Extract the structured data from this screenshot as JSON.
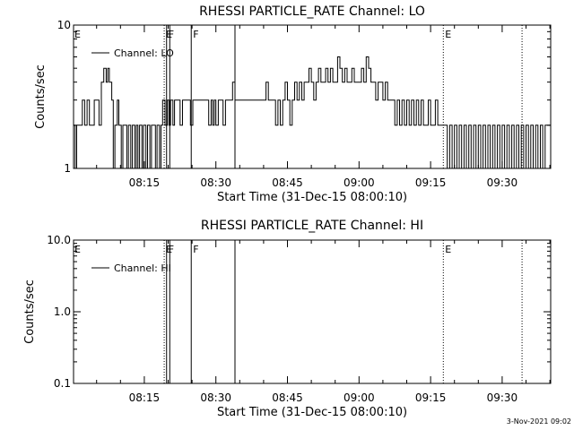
{
  "footer": {
    "timestamp": "3-Nov-2021 09:02"
  },
  "chart_data": [
    {
      "type": "line",
      "title": "RHESSI PARTICLE_RATE Channel: LO",
      "xlabel": "Start Time (31-Dec-15 08:00:10)",
      "ylabel": "Counts/sec",
      "yscale": "log",
      "xlim": [
        "08:00:10",
        "09:40:10"
      ],
      "ylim": [
        1,
        10
      ],
      "x_ticks": [
        "08:15",
        "08:30",
        "08:45",
        "09:00",
        "09:15",
        "09:30"
      ],
      "y_ticks": [
        "1",
        "10"
      ],
      "grid": false,
      "legend": {
        "position": "top-left",
        "entries": [
          "Channel: LO"
        ]
      },
      "markers": [
        {
          "time": "08:19:10",
          "label": "E",
          "style": "dotted"
        },
        {
          "time": "08:19:40",
          "label": "F",
          "style": "solid"
        },
        {
          "time": "08:20:20",
          "label": "",
          "style": "solid"
        },
        {
          "time": "08:24:50",
          "label": "F",
          "style": "solid"
        },
        {
          "time": "08:34:00",
          "label": "",
          "style": "solid"
        },
        {
          "time": "09:17:40",
          "label": "E",
          "style": "dotted"
        },
        {
          "time": "09:34:10",
          "label": "",
          "style": "dotted"
        }
      ],
      "edge_labels": [
        {
          "time": "08:00:10",
          "label": "E"
        }
      ],
      "series": [
        {
          "name": "Channel: LO",
          "points": [
            [
              "08:00:10",
              2
            ],
            [
              "08:00:30",
              1
            ],
            [
              "08:00:50",
              2
            ],
            [
              "08:01:30",
              2
            ],
            [
              "08:02:00",
              3
            ],
            [
              "08:02:30",
              2
            ],
            [
              "08:03:00",
              3
            ],
            [
              "08:03:30",
              2
            ],
            [
              "08:04:00",
              2
            ],
            [
              "08:04:30",
              3
            ],
            [
              "08:05:00",
              3
            ],
            [
              "08:05:30",
              2
            ],
            [
              "08:06:00",
              4
            ],
            [
              "08:06:30",
              5
            ],
            [
              "08:07:00",
              4
            ],
            [
              "08:07:20",
              5
            ],
            [
              "08:07:40",
              4
            ],
            [
              "08:08:10",
              3
            ],
            [
              "08:08:30",
              1
            ],
            [
              "08:08:50",
              2
            ],
            [
              "08:09:20",
              3
            ],
            [
              "08:09:40",
              2
            ],
            [
              "08:10:10",
              1
            ],
            [
              "08:10:30",
              2
            ],
            [
              "08:11:00",
              2
            ],
            [
              "08:11:20",
              1
            ],
            [
              "08:11:40",
              2
            ],
            [
              "08:12:10",
              1
            ],
            [
              "08:12:30",
              2
            ],
            [
              "08:13:00",
              1
            ],
            [
              "08:13:20",
              2
            ],
            [
              "08:13:40",
              1
            ],
            [
              "08:14:00",
              2
            ],
            [
              "08:14:30",
              1
            ],
            [
              "08:14:50",
              2
            ],
            [
              "08:15:20",
              1
            ],
            [
              "08:15:40",
              2
            ],
            [
              "08:16:10",
              1
            ],
            [
              "08:16:30",
              2
            ],
            [
              "08:16:50",
              2
            ],
            [
              "08:17:20",
              1
            ],
            [
              "08:17:40",
              2
            ],
            [
              "08:18:10",
              1
            ],
            [
              "08:18:30",
              2
            ],
            [
              "08:18:50",
              3
            ],
            [
              "08:19:20",
              2
            ],
            [
              "08:19:50",
              3
            ],
            [
              "08:20:10",
              2
            ],
            [
              "08:20:30",
              3
            ],
            [
              "08:21:00",
              2
            ],
            [
              "08:21:20",
              3
            ],
            [
              "08:22:00",
              3
            ],
            [
              "08:22:30",
              2
            ],
            [
              "08:23:00",
              3
            ],
            [
              "08:24:00",
              3
            ],
            [
              "08:24:40",
              2
            ],
            [
              "08:25:10",
              3
            ],
            [
              "08:26:00",
              3
            ],
            [
              "08:27:00",
              3
            ],
            [
              "08:28:00",
              3
            ],
            [
              "08:28:30",
              2
            ],
            [
              "08:29:00",
              3
            ],
            [
              "08:29:20",
              2
            ],
            [
              "08:29:40",
              3
            ],
            [
              "08:30:00",
              2
            ],
            [
              "08:30:30",
              3
            ],
            [
              "08:31:00",
              3
            ],
            [
              "08:31:30",
              2
            ],
            [
              "08:32:00",
              3
            ],
            [
              "08:33:00",
              3
            ],
            [
              "08:33:30",
              4
            ],
            [
              "08:34:00",
              3
            ],
            [
              "08:35:00",
              3
            ],
            [
              "08:36:00",
              3
            ],
            [
              "08:37:00",
              3
            ],
            [
              "08:38:00",
              3
            ],
            [
              "08:39:00",
              3
            ],
            [
              "08:40:00",
              3
            ],
            [
              "08:40:30",
              4
            ],
            [
              "08:41:00",
              3
            ],
            [
              "08:42:00",
              3
            ],
            [
              "08:42:30",
              2
            ],
            [
              "08:43:00",
              3
            ],
            [
              "08:43:30",
              2
            ],
            [
              "08:44:00",
              3
            ],
            [
              "08:44:30",
              4
            ],
            [
              "08:45:00",
              3
            ],
            [
              "08:45:30",
              2
            ],
            [
              "08:46:00",
              3
            ],
            [
              "08:46:30",
              4
            ],
            [
              "08:47:00",
              3
            ],
            [
              "08:47:30",
              4
            ],
            [
              "08:48:00",
              3
            ],
            [
              "08:48:30",
              4
            ],
            [
              "08:49:00",
              4
            ],
            [
              "08:49:30",
              5
            ],
            [
              "08:50:00",
              4
            ],
            [
              "08:50:30",
              3
            ],
            [
              "08:51:00",
              4
            ],
            [
              "08:51:30",
              5
            ],
            [
              "08:52:00",
              4
            ],
            [
              "08:52:30",
              4
            ],
            [
              "08:53:00",
              5
            ],
            [
              "08:53:30",
              4
            ],
            [
              "08:54:00",
              5
            ],
            [
              "08:54:30",
              4
            ],
            [
              "08:55:00",
              4
            ],
            [
              "08:55:30",
              6
            ],
            [
              "08:56:00",
              5
            ],
            [
              "08:56:30",
              4
            ],
            [
              "08:57:00",
              5
            ],
            [
              "08:57:30",
              4
            ],
            [
              "08:58:00",
              4
            ],
            [
              "08:58:30",
              5
            ],
            [
              "08:59:00",
              4
            ],
            [
              "09:00:00",
              4
            ],
            [
              "09:00:30",
              5
            ],
            [
              "09:01:00",
              4
            ],
            [
              "09:01:30",
              6
            ],
            [
              "09:02:00",
              5
            ],
            [
              "09:02:30",
              4
            ],
            [
              "09:03:00",
              4
            ],
            [
              "09:03:30",
              3
            ],
            [
              "09:04:00",
              4
            ],
            [
              "09:04:30",
              4
            ],
            [
              "09:05:00",
              3
            ],
            [
              "09:05:30",
              4
            ],
            [
              "09:06:00",
              3
            ],
            [
              "09:06:30",
              3
            ],
            [
              "09:07:00",
              3
            ],
            [
              "09:07:30",
              2
            ],
            [
              "09:08:00",
              3
            ],
            [
              "09:08:30",
              2
            ],
            [
              "09:09:00",
              3
            ],
            [
              "09:09:30",
              2
            ],
            [
              "09:10:00",
              3
            ],
            [
              "09:10:30",
              2
            ],
            [
              "09:11:00",
              3
            ],
            [
              "09:11:30",
              2
            ],
            [
              "09:12:00",
              3
            ],
            [
              "09:12:30",
              2
            ],
            [
              "09:13:00",
              3
            ],
            [
              "09:13:30",
              2
            ],
            [
              "09:14:00",
              2
            ],
            [
              "09:14:30",
              3
            ],
            [
              "09:15:00",
              2
            ],
            [
              "09:15:30",
              2
            ],
            [
              "09:16:00",
              3
            ],
            [
              "09:16:30",
              2
            ],
            [
              "09:17:00",
              2
            ],
            [
              "09:17:30",
              2
            ],
            [
              "09:18:00",
              2
            ],
            [
              "09:18:30",
              1
            ],
            [
              "09:19:00",
              2
            ],
            [
              "09:19:30",
              1
            ],
            [
              "09:20:00",
              2
            ],
            [
              "09:20:30",
              1
            ],
            [
              "09:21:00",
              2
            ],
            [
              "09:21:30",
              1
            ],
            [
              "09:22:00",
              2
            ],
            [
              "09:22:30",
              1
            ],
            [
              "09:23:00",
              2
            ],
            [
              "09:23:30",
              1
            ],
            [
              "09:24:00",
              2
            ],
            [
              "09:24:30",
              1
            ],
            [
              "09:25:00",
              2
            ],
            [
              "09:25:30",
              1
            ],
            [
              "09:26:00",
              2
            ],
            [
              "09:26:30",
              1
            ],
            [
              "09:27:00",
              2
            ],
            [
              "09:27:30",
              1
            ],
            [
              "09:28:00",
              2
            ],
            [
              "09:28:30",
              1
            ],
            [
              "09:29:00",
              2
            ],
            [
              "09:29:30",
              1
            ],
            [
              "09:30:00",
              2
            ],
            [
              "09:30:30",
              1
            ],
            [
              "09:31:00",
              2
            ],
            [
              "09:31:30",
              1
            ],
            [
              "09:32:00",
              2
            ],
            [
              "09:32:30",
              1
            ],
            [
              "09:33:00",
              2
            ],
            [
              "09:33:30",
              1
            ],
            [
              "09:34:00",
              2
            ],
            [
              "09:34:30",
              1
            ],
            [
              "09:35:00",
              2
            ],
            [
              "09:35:30",
              1
            ],
            [
              "09:36:00",
              2
            ],
            [
              "09:36:30",
              1
            ],
            [
              "09:37:00",
              2
            ],
            [
              "09:37:30",
              1
            ],
            [
              "09:38:00",
              2
            ],
            [
              "09:38:30",
              1
            ],
            [
              "09:39:00",
              2
            ],
            [
              "09:40:10",
              2
            ]
          ]
        }
      ]
    },
    {
      "type": "line",
      "title": "RHESSI PARTICLE_RATE Channel: HI",
      "xlabel": "Start Time (31-Dec-15 08:00:10)",
      "ylabel": "Counts/sec",
      "yscale": "log",
      "xlim": [
        "08:00:10",
        "09:40:10"
      ],
      "ylim": [
        0.1,
        10
      ],
      "x_ticks": [
        "08:15",
        "08:30",
        "08:45",
        "09:00",
        "09:15",
        "09:30"
      ],
      "y_ticks": [
        "0.1",
        "1.0",
        "10.0"
      ],
      "grid": false,
      "legend": {
        "position": "top-left",
        "entries": [
          "Channel: HI"
        ]
      },
      "markers": [
        {
          "time": "08:19:10",
          "label": "E",
          "style": "dotted"
        },
        {
          "time": "08:19:40",
          "label": "F",
          "style": "solid"
        },
        {
          "time": "08:20:20",
          "label": "",
          "style": "solid"
        },
        {
          "time": "08:24:50",
          "label": "F",
          "style": "solid"
        },
        {
          "time": "08:34:00",
          "label": "",
          "style": "solid"
        },
        {
          "time": "09:17:40",
          "label": "E",
          "style": "dotted"
        },
        {
          "time": "09:34:10",
          "label": "",
          "style": "dotted"
        }
      ],
      "edge_labels": [
        {
          "time": "08:00:10",
          "label": "E"
        }
      ],
      "series": [
        {
          "name": "Channel: HI",
          "points": []
        }
      ]
    }
  ]
}
